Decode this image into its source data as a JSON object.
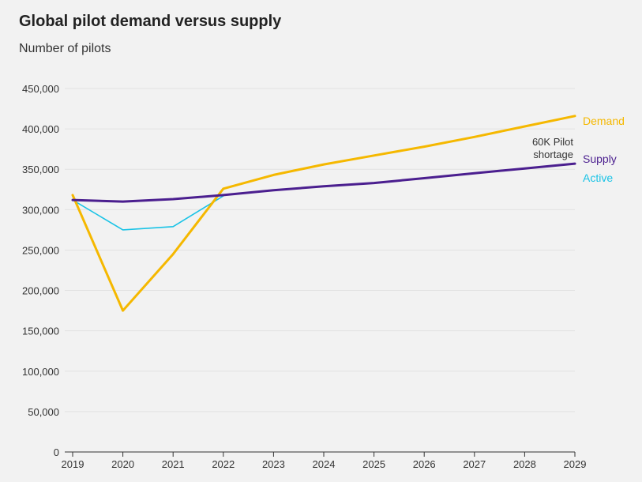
{
  "header": {
    "title": "Global pilot demand versus supply",
    "subtitle": "Number of pilots"
  },
  "chart_data": {
    "type": "line",
    "title": "Global pilot demand versus supply",
    "subtitle": "Number of pilots",
    "x": [
      2019,
      2020,
      2021,
      2022,
      2023,
      2024,
      2025,
      2026,
      2027,
      2028,
      2029
    ],
    "xlim": [
      2019,
      2029
    ],
    "ylim": [
      0,
      450000
    ],
    "yticks": [
      0,
      50000,
      100000,
      150000,
      200000,
      250000,
      300000,
      350000,
      400000,
      450000
    ],
    "ytick_labels": [
      "0",
      "50,000",
      "100,000",
      "150,000",
      "200,000",
      "250,000",
      "300,000",
      "350,000",
      "400,000",
      "450,000"
    ],
    "xtick_labels": [
      "2019",
      "2020",
      "2021",
      "2022",
      "2023",
      "2024",
      "2025",
      "2026",
      "2027",
      "2028",
      "2029"
    ],
    "grid": "horizontal",
    "series": [
      {
        "name": "Demand",
        "color": "#f5b800",
        "x": [
          2019,
          2020,
          2021,
          2022,
          2023,
          2024,
          2025,
          2026,
          2027,
          2028,
          2029
        ],
        "values": [
          318000,
          175000,
          245000,
          326000,
          343000,
          356000,
          367000,
          378000,
          390000,
          403000,
          416000
        ]
      },
      {
        "name": "Supply",
        "color": "#4b1f8f",
        "x": [
          2019,
          2020,
          2021,
          2022,
          2023,
          2024,
          2025,
          2026,
          2027,
          2028,
          2029
        ],
        "values": [
          312000,
          310000,
          313000,
          318000,
          324000,
          329000,
          333000,
          339000,
          345000,
          351000,
          357000
        ]
      },
      {
        "name": "Active",
        "color": "#19c3e6",
        "x": [
          2019,
          2020,
          2021,
          2022
        ],
        "values": [
          312000,
          275000,
          279000,
          317000
        ]
      }
    ],
    "annotations": [
      {
        "text_line1": "60K Pilot",
        "text_line2": "shortage"
      }
    ]
  }
}
